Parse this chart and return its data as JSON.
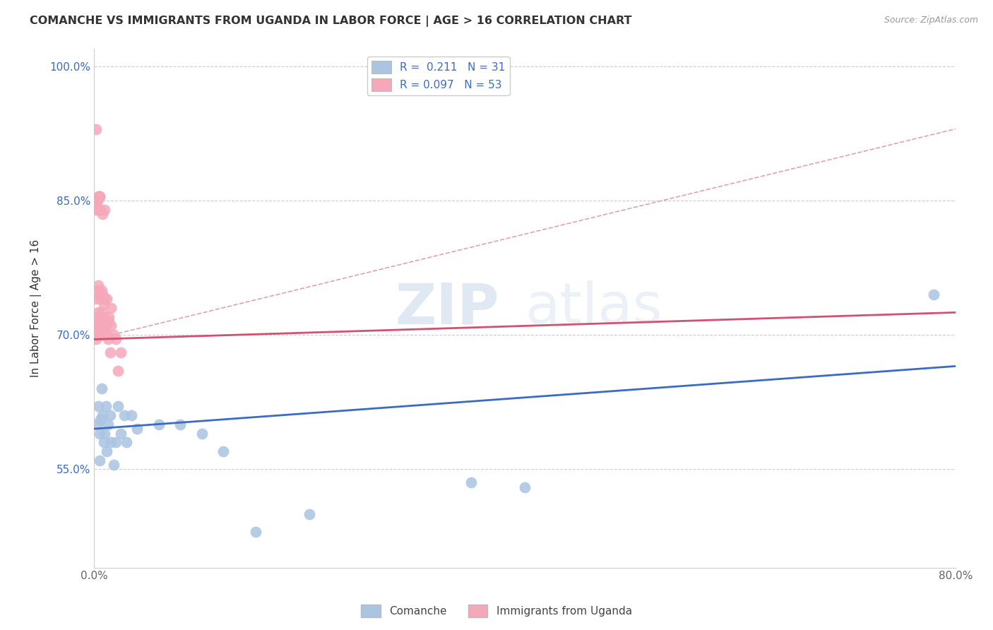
{
  "title": "COMANCHE VS IMMIGRANTS FROM UGANDA IN LABOR FORCE | AGE > 16 CORRELATION CHART",
  "source": "Source: ZipAtlas.com",
  "ylabel": "In Labor Force | Age > 16",
  "xlim": [
    0.0,
    0.8
  ],
  "ylim": [
    0.44,
    1.02
  ],
  "xticks": [
    0.0,
    0.1,
    0.2,
    0.3,
    0.4,
    0.5,
    0.6,
    0.7,
    0.8
  ],
  "yticks": [
    0.55,
    0.7,
    0.85,
    1.0
  ],
  "yticklabels": [
    "55.0%",
    "70.0%",
    "85.0%",
    "100.0%"
  ],
  "watermark": "ZIPatlas",
  "comanche_color": "#aac4e2",
  "uganda_color": "#f5a8ba",
  "comanche_line_color": "#3B6CC4",
  "uganda_line_color": "#D45070",
  "dashed_line_color": "#e0a0b8",
  "comanche_x": [
    0.003,
    0.004,
    0.005,
    0.005,
    0.006,
    0.007,
    0.008,
    0.009,
    0.01,
    0.011,
    0.012,
    0.013,
    0.015,
    0.016,
    0.018,
    0.02,
    0.022,
    0.025,
    0.028,
    0.03,
    0.035,
    0.04,
    0.06,
    0.08,
    0.1,
    0.12,
    0.15,
    0.2,
    0.35,
    0.4,
    0.78
  ],
  "comanche_y": [
    0.6,
    0.62,
    0.59,
    0.56,
    0.605,
    0.64,
    0.61,
    0.58,
    0.59,
    0.62,
    0.57,
    0.6,
    0.61,
    0.58,
    0.555,
    0.58,
    0.62,
    0.59,
    0.61,
    0.58,
    0.61,
    0.595,
    0.6,
    0.6,
    0.59,
    0.57,
    0.48,
    0.5,
    0.535,
    0.53,
    0.745
  ],
  "uganda_x": [
    0.001,
    0.001,
    0.002,
    0.002,
    0.003,
    0.003,
    0.004,
    0.004,
    0.005,
    0.005,
    0.006,
    0.006,
    0.007,
    0.007,
    0.008,
    0.008,
    0.009,
    0.009,
    0.01,
    0.01,
    0.011,
    0.012,
    0.013,
    0.014,
    0.015,
    0.016,
    0.018,
    0.02,
    0.022,
    0.025,
    0.002,
    0.003,
    0.004,
    0.005,
    0.006,
    0.007,
    0.008,
    0.009,
    0.01,
    0.012,
    0.014,
    0.016,
    0.002,
    0.003,
    0.004,
    0.005,
    0.006,
    0.008,
    0.01,
    0.003,
    0.005,
    0.004,
    0.002
  ],
  "uganda_y": [
    0.7,
    0.72,
    0.71,
    0.695,
    0.715,
    0.705,
    0.725,
    0.7,
    0.715,
    0.71,
    0.7,
    0.715,
    0.725,
    0.71,
    0.72,
    0.7,
    0.71,
    0.72,
    0.715,
    0.705,
    0.71,
    0.7,
    0.695,
    0.715,
    0.68,
    0.71,
    0.7,
    0.695,
    0.66,
    0.68,
    0.74,
    0.75,
    0.755,
    0.745,
    0.74,
    0.75,
    0.745,
    0.735,
    0.74,
    0.74,
    0.72,
    0.73,
    0.84,
    0.85,
    0.855,
    0.855,
    0.84,
    0.835,
    0.84,
    0.85,
    0.855,
    0.84,
    0.93
  ],
  "com_line_x0": 0.0,
  "com_line_y0": 0.595,
  "com_line_x1": 0.8,
  "com_line_y1": 0.665,
  "uga_line_x0": 0.0,
  "uga_line_y0": 0.695,
  "uga_line_x1": 0.8,
  "uga_line_y1": 0.725,
  "dash_line_x0": 0.0,
  "dash_line_y0": 0.695,
  "dash_line_x1": 0.8,
  "dash_line_y1": 0.93
}
